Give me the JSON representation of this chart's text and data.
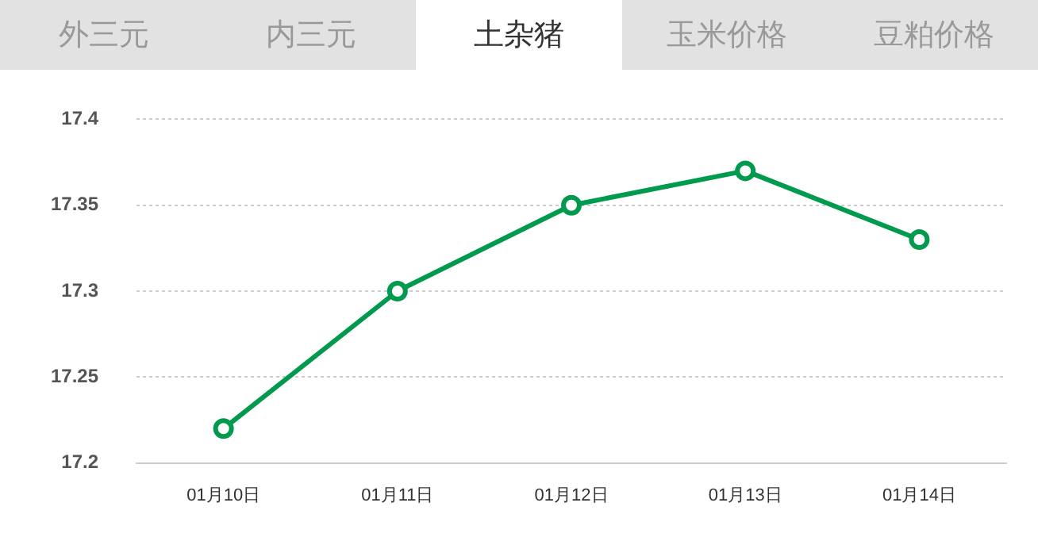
{
  "chart_data": {
    "type": "line",
    "title": "土杂猪",
    "annotations": [
      "外三元",
      "内三元",
      "玉米价格",
      "豆粕价格"
    ],
    "categories": [
      "01月10日",
      "01月11日",
      "01月12日",
      "01月13日",
      "01月14日"
    ],
    "series": [
      {
        "color": "#009a4e",
        "values": [
          17.22,
          17.3,
          17.35,
          17.37,
          17.33
        ]
      }
    ],
    "ylim": [
      17.2,
      17.4
    ],
    "yticks": [
      17.2,
      17.25,
      17.3,
      17.35,
      17.4
    ],
    "grid": "y",
    "legend": false,
    "marker": "circle",
    "line_style": "solid"
  }
}
